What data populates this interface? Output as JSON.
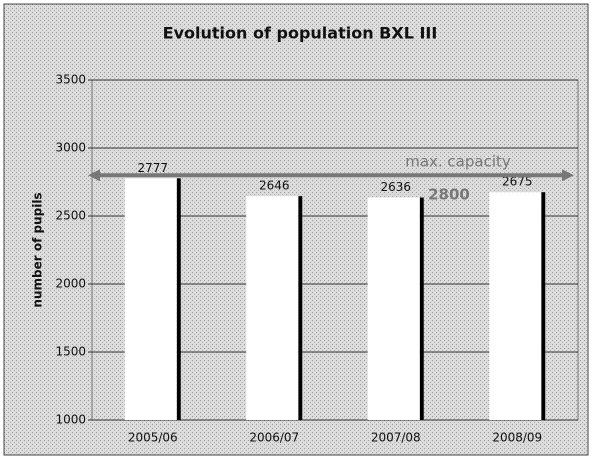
{
  "chart_data": {
    "type": "bar",
    "title": "Evolution of population BXL III",
    "y_label": "number of pupils",
    "categories": [
      "2005/06",
      "2006/07",
      "2007/08",
      "2008/09"
    ],
    "values": [
      2777,
      2646,
      2636,
      2675
    ],
    "color": "#ffffff",
    "ylim": [
      1000,
      3500
    ],
    "yticks": [
      1000,
      1500,
      2000,
      2500,
      3000,
      3500
    ],
    "grid": true,
    "capacity": {
      "label": "max. capacity",
      "value": 2800
    }
  }
}
